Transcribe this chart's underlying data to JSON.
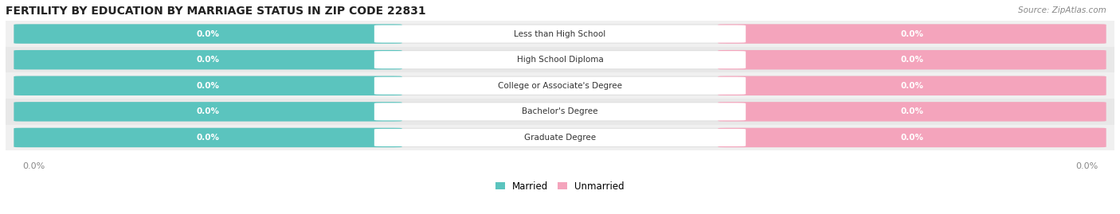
{
  "title": "FERTILITY BY EDUCATION BY MARRIAGE STATUS IN ZIP CODE 22831",
  "source": "Source: ZipAtlas.com",
  "categories": [
    "Less than High School",
    "High School Diploma",
    "College or Associate's Degree",
    "Bachelor's Degree",
    "Graduate Degree"
  ],
  "married_values": [
    0.0,
    0.0,
    0.0,
    0.0,
    0.0
  ],
  "unmarried_values": [
    0.0,
    0.0,
    0.0,
    0.0,
    0.0
  ],
  "married_color": "#5bc4be",
  "unmarried_color": "#f4a4bc",
  "row_bg_even": "#f0f0f0",
  "row_bg_odd": "#e8e8e8",
  "bar_bg_color": "#e0e0e0",
  "value_label_married": "0.0%",
  "value_label_unmarried": "0.0%",
  "x_left_label": "0.0%",
  "x_right_label": "0.0%",
  "legend_married": "Married",
  "legend_unmarried": "Unmarried",
  "title_fontsize": 10,
  "source_fontsize": 7.5,
  "figsize": [
    14.06,
    2.69
  ],
  "dpi": 100
}
